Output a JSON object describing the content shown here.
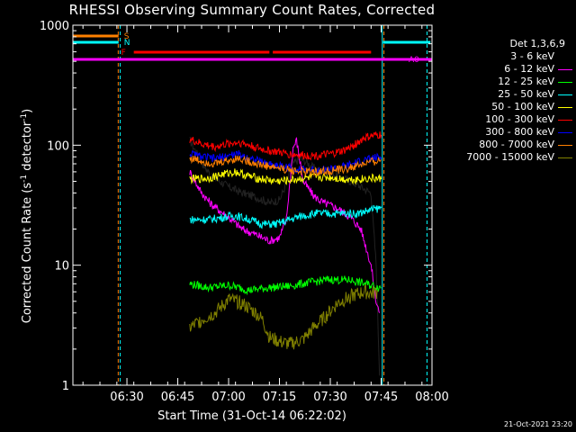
{
  "chart_data": {
    "type": "line",
    "title": "RHESSI Observing Summary Count Rates, Corrected",
    "xlabel": "Start Time (31-Oct-14 06:22:02)",
    "ylabel_main": "Corrected Count Rate (s",
    "ylabel_sup1": "-1",
    "ylabel_mid": " detector",
    "ylabel_sup2": "-1",
    "ylabel_end": ")",
    "stamp": "21-Oct-2021 23:20",
    "yscale": "log",
    "ylim": [
      1,
      1000
    ],
    "y_ticks": [
      "1",
      "10",
      "100",
      "1000"
    ],
    "xlim_min": [
      -7.97,
      97.97
    ],
    "x_ticks": [
      {
        "label": "06:30",
        "min": 7.97
      },
      {
        "label": "06:45",
        "min": 22.97
      },
      {
        "label": "07:00",
        "min": 37.97
      },
      {
        "label": "07:15",
        "min": 52.97
      },
      {
        "label": "07:30",
        "min": 67.97
      },
      {
        "label": "07:45",
        "min": 82.97
      },
      {
        "label": "08:00",
        "min": 97.97
      }
    ],
    "legend_header": "Det 1,3,6,9",
    "series": [
      {
        "name": "3 - 6 keV",
        "color": "#000000",
        "points": [
          [
            26.5,
            110
          ],
          [
            30,
            72
          ],
          [
            33,
            55
          ],
          [
            38,
            45
          ],
          [
            42,
            40
          ],
          [
            46,
            37
          ],
          [
            50,
            33
          ],
          [
            53,
            35
          ],
          [
            55,
            48
          ],
          [
            57,
            70
          ],
          [
            59,
            78
          ],
          [
            61,
            72
          ],
          [
            63,
            65
          ],
          [
            66,
            60
          ],
          [
            70,
            56
          ],
          [
            74,
            50
          ],
          [
            77,
            45
          ],
          [
            80,
            40
          ],
          [
            81.5,
            10
          ],
          [
            82.5,
            1.2
          ]
        ]
      },
      {
        "name": "6 - 12 keV",
        "color": "#ff00ff",
        "points": [
          [
            26.5,
            60
          ],
          [
            30,
            40
          ],
          [
            33,
            32
          ],
          [
            38,
            25
          ],
          [
            42,
            20
          ],
          [
            46,
            18
          ],
          [
            50,
            16
          ],
          [
            53,
            17
          ],
          [
            55,
            24
          ],
          [
            57,
            95
          ],
          [
            58,
            110
          ],
          [
            60,
            50
          ],
          [
            63,
            38
          ],
          [
            66,
            33
          ],
          [
            70,
            30
          ],
          [
            74,
            25
          ],
          [
            77,
            20
          ],
          [
            80,
            10
          ],
          [
            81.5,
            5
          ],
          [
            82.5,
            4
          ]
        ]
      },
      {
        "name": "12 - 25 keV",
        "color": "#00ff00",
        "points": [
          [
            26.5,
            7
          ],
          [
            32,
            6.5
          ],
          [
            38,
            6.8
          ],
          [
            44,
            6.2
          ],
          [
            50,
            6.5
          ],
          [
            56,
            6.7
          ],
          [
            62,
            7.2
          ],
          [
            68,
            7.6
          ],
          [
            74,
            7.5
          ],
          [
            80,
            6.8
          ],
          [
            83,
            6.5
          ]
        ]
      },
      {
        "name": "25 - 50 keV",
        "color": "#00ffff",
        "points": [
          [
            26.5,
            24
          ],
          [
            32,
            24
          ],
          [
            36,
            25
          ],
          [
            40,
            26
          ],
          [
            44,
            24
          ],
          [
            48,
            22
          ],
          [
            52,
            22
          ],
          [
            56,
            24
          ],
          [
            60,
            26
          ],
          [
            64,
            27
          ],
          [
            68,
            27
          ],
          [
            72,
            27
          ],
          [
            76,
            27
          ],
          [
            80,
            29
          ],
          [
            83,
            30
          ]
        ]
      },
      {
        "name": "50 - 100 keV",
        "color": "#ffff00",
        "points": [
          [
            26.5,
            52
          ],
          [
            32,
            53
          ],
          [
            36,
            57
          ],
          [
            40,
            60
          ],
          [
            44,
            55
          ],
          [
            48,
            52
          ],
          [
            52,
            50
          ],
          [
            56,
            51
          ],
          [
            60,
            53
          ],
          [
            64,
            54
          ],
          [
            68,
            54
          ],
          [
            72,
            52
          ],
          [
            76,
            52
          ],
          [
            80,
            53
          ],
          [
            83,
            52
          ]
        ]
      },
      {
        "name": "100 - 300 keV",
        "color": "#ff0000",
        "points": [
          [
            26.5,
            112
          ],
          [
            30,
            102
          ],
          [
            34,
            97
          ],
          [
            38,
            103
          ],
          [
            41,
            106
          ],
          [
            44,
            100
          ],
          [
            48,
            92
          ],
          [
            52,
            88
          ],
          [
            56,
            84
          ],
          [
            60,
            82
          ],
          [
            64,
            82
          ],
          [
            68,
            84
          ],
          [
            72,
            90
          ],
          [
            75,
            100
          ],
          [
            78,
            115
          ],
          [
            81,
            120
          ],
          [
            83,
            122
          ]
        ]
      },
      {
        "name": "300 - 800 keV",
        "color": "#0000ff",
        "points": [
          [
            26.5,
            85
          ],
          [
            30,
            80
          ],
          [
            34,
            77
          ],
          [
            38,
            82
          ],
          [
            41,
            84
          ],
          [
            44,
            78
          ],
          [
            48,
            72
          ],
          [
            52,
            68
          ],
          [
            56,
            65
          ],
          [
            60,
            62
          ],
          [
            64,
            62
          ],
          [
            68,
            63
          ],
          [
            72,
            66
          ],
          [
            75,
            70
          ],
          [
            78,
            75
          ],
          [
            81,
            78
          ],
          [
            83,
            79
          ]
        ]
      },
      {
        "name": "800 - 7000 keV",
        "color": "#ff8000",
        "points": [
          [
            26.5,
            78
          ],
          [
            30,
            74
          ],
          [
            34,
            70
          ],
          [
            38,
            75
          ],
          [
            41,
            78
          ],
          [
            44,
            73
          ],
          [
            48,
            68
          ],
          [
            52,
            65
          ],
          [
            56,
            62
          ],
          [
            60,
            60
          ],
          [
            64,
            60
          ],
          [
            68,
            61
          ],
          [
            72,
            63
          ],
          [
            75,
            66
          ],
          [
            78,
            70
          ],
          [
            81,
            73
          ],
          [
            83,
            75
          ]
        ]
      },
      {
        "name": "7000 - 15000 keV",
        "color": "#808000",
        "points": [
          [
            26.5,
            3
          ],
          [
            30,
            3.5
          ],
          [
            34,
            4
          ],
          [
            38,
            5.2
          ],
          [
            42,
            4.8
          ],
          [
            46,
            4
          ],
          [
            48,
            3.5
          ],
          [
            50,
            2.5
          ],
          [
            53,
            2.3
          ],
          [
            56,
            2.2
          ],
          [
            60,
            2.4
          ],
          [
            63,
            3
          ],
          [
            66,
            3.6
          ],
          [
            70,
            4.8
          ],
          [
            74,
            5.5
          ],
          [
            78,
            6
          ],
          [
            80,
            5.8
          ],
          [
            82,
            6
          ]
        ]
      }
    ],
    "flags": [
      {
        "name": "S",
        "color": "#ff8000",
        "segments": [
          [
            -7.97,
            5.5
          ]
        ]
      },
      {
        "name": "N",
        "color": "#00ffff",
        "segments": [
          [
            -7.97,
            5.5
          ],
          [
            83.5,
            97.5
          ]
        ]
      },
      {
        "name": "F",
        "color": "#ff0000",
        "segments": [
          [
            10,
            50
          ],
          [
            51,
            80
          ]
        ]
      },
      {
        "name": "A0",
        "color": "#ff00ff",
        "segments": [
          [
            -7.97,
            97.97
          ]
        ]
      }
    ],
    "vlines": [
      {
        "min": -7.97,
        "color": "#00ffff",
        "style": "solid"
      },
      {
        "min": 5.4,
        "color": "#ff8000",
        "style": "dashed"
      },
      {
        "min": 6.0,
        "color": "#00ffff",
        "style": "dashed"
      },
      {
        "min": 83.3,
        "color": "#00ffff",
        "style": "solid"
      },
      {
        "min": 83.8,
        "color": "#ff8000",
        "style": "dashed"
      },
      {
        "min": 96.5,
        "color": "#00ffff",
        "style": "dashed"
      }
    ]
  }
}
